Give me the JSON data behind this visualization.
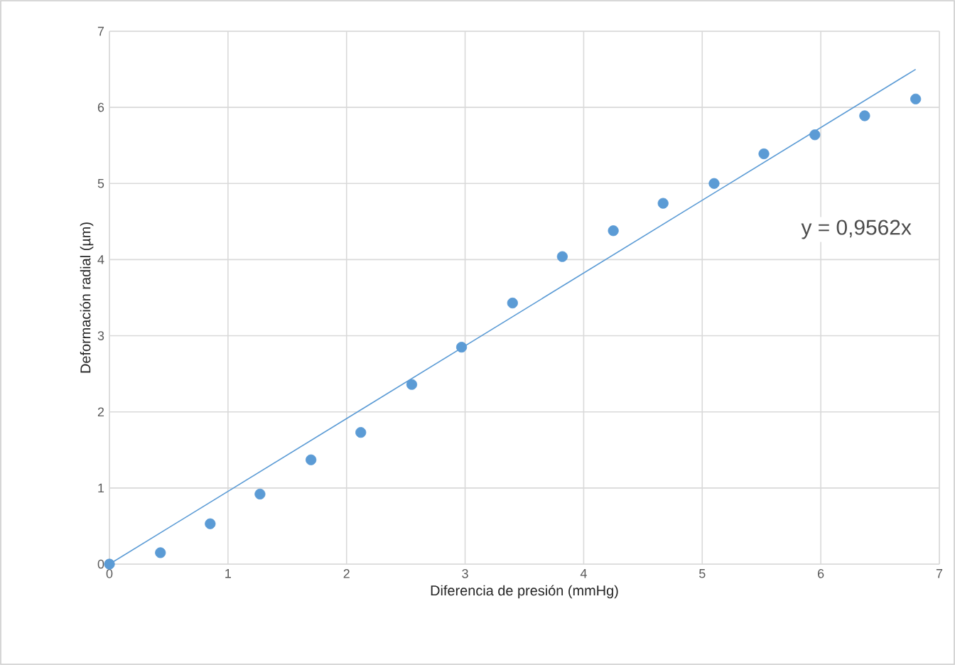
{
  "chart_data": {
    "type": "scatter",
    "xlabel": "Diferencia de presión (mmHg)",
    "ylabel": "Deformación radial (µm)",
    "series": [
      {
        "color": "#5b9bd5",
        "marker": "circle",
        "x": [
          0,
          0.43,
          0.85,
          1.27,
          1.7,
          2.12,
          2.55,
          2.97,
          3.4,
          3.82,
          4.25,
          4.67,
          5.1,
          5.52,
          5.95,
          6.37,
          6.8
        ],
        "values": [
          0,
          0.15,
          0.53,
          0.92,
          1.37,
          1.73,
          2.36,
          2.85,
          3.43,
          4.04,
          4.38,
          4.74,
          5.0,
          5.39,
          5.64,
          5.89,
          6.11
        ]
      },
      {
        "type": "line",
        "color": "#5b9bd5",
        "marker": "none",
        "line_style": "solid",
        "x": [
          0,
          6.8
        ],
        "values": [
          0,
          6.5
        ]
      }
    ],
    "annotations": [
      "y = 0,9562x"
    ],
    "xlim": [
      0,
      7
    ],
    "ylim": [
      0,
      7
    ],
    "xticks": [
      0,
      1,
      2,
      3,
      4,
      5,
      6,
      7
    ],
    "yticks": [
      0,
      1,
      2,
      3,
      4,
      5,
      6,
      7
    ],
    "grid": true
  }
}
